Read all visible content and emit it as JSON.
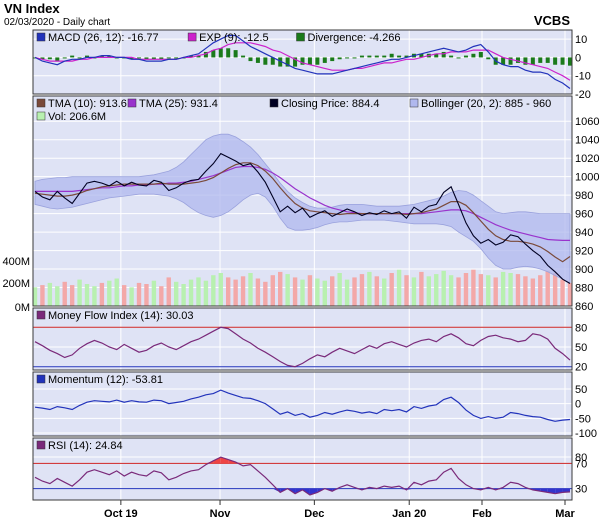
{
  "header": {
    "title": "VN Index",
    "subtitle": "02/03/2020 - Daily chart",
    "brand": "VCBS"
  },
  "colors": {
    "panel_bg": "#dfe3f5",
    "frame": "#3a3a3a",
    "grid": "#ffffff",
    "macd": "#2233bb",
    "exp": "#cc22cc",
    "div_pos": "#1a7a1a",
    "div_neg": "#1a7a1a",
    "tma10": "#7a4a3a",
    "tma25": "#9933cc",
    "close": "#000022",
    "bollinger": "#b0b8ee",
    "vol_up": "#b8f0b0",
    "vol_down": "#f3a8a8",
    "mfi": "#7a2a7a",
    "momentum": "#2233bb",
    "rsi": "#7a2a7a",
    "ob_line": "#cc2222",
    "os_line": "#2233bb",
    "rsi_over": "#ee4444",
    "rsi_under": "#3333cc"
  },
  "x_axis": {
    "labels": [
      "Oct 19",
      "Nov",
      "Dec",
      "Jan 20",
      "Feb",
      "Mar"
    ]
  },
  "chart_data": [
    {
      "type": "bar+line",
      "name": "MACD panel",
      "legend": [
        {
          "key": "macd",
          "label": "MACD (26, 12): -16.77"
        },
        {
          "key": "exp",
          "label": "EXP (9): -12.5"
        },
        {
          "key": "divergence",
          "label": "Divergence: -4.266"
        }
      ],
      "ylim": [
        -20,
        15
      ],
      "ticks": [
        10,
        0,
        -10,
        -20
      ],
      "macd": [
        0,
        -2,
        -3,
        -4,
        -2,
        -1,
        -1,
        0,
        0,
        1,
        1,
        0,
        0,
        -1,
        -1,
        -2,
        -2,
        -2,
        -1,
        -1,
        0,
        1,
        2,
        5,
        8,
        10,
        12,
        12,
        9,
        6,
        4,
        2,
        0,
        -2,
        -4,
        -6,
        -7,
        -8,
        -9,
        -9,
        -9,
        -8,
        -7,
        -6,
        -5,
        -4,
        -3,
        -2,
        -1,
        -1,
        0,
        1,
        2,
        3,
        4,
        5,
        4,
        3,
        4,
        6,
        7,
        3,
        -2,
        -4,
        -5,
        -5,
        -7,
        -8,
        -8,
        -9,
        -12,
        -14,
        -17
      ],
      "exp": [
        0,
        -1,
        -2,
        -2,
        -2,
        -2,
        -1,
        -1,
        0,
        0,
        0,
        0,
        0,
        0,
        -1,
        -1,
        -1,
        -1,
        -1,
        -1,
        0,
        0,
        1,
        2,
        4,
        5,
        7,
        8,
        8,
        8,
        7,
        6,
        4,
        3,
        1,
        -1,
        -3,
        -4,
        -5,
        -6,
        -7,
        -7,
        -7,
        -6,
        -6,
        -5,
        -4,
        -3,
        -3,
        -2,
        -1,
        -1,
        0,
        1,
        2,
        2,
        3,
        3,
        3,
        4,
        4,
        4,
        2,
        0,
        -1,
        -2,
        -3,
        -4,
        -5,
        -6,
        -8,
        -10,
        -12.5
      ]
    },
    {
      "type": "line+bar",
      "name": "Price panel",
      "legend": [
        {
          "key": "tma10",
          "label": "TMA (10): 913.6"
        },
        {
          "key": "tma25",
          "label": "TMA (25): 931.4"
        },
        {
          "key": "close",
          "label": "Closing Price: 884.4"
        },
        {
          "key": "bollinger",
          "label": "Bollinger (20, 2): 885 - 960"
        },
        {
          "key": "vol",
          "label": "Vol: 206.6M"
        }
      ],
      "ylim": [
        860,
        1070
      ],
      "ticks": [
        1060,
        1040,
        1020,
        1000,
        980,
        960,
        940,
        920,
        900,
        880,
        860
      ],
      "vol_ticks": [
        "400M",
        "200M",
        "0M"
      ],
      "close": [
        984,
        978,
        975,
        984,
        977,
        971,
        982,
        993,
        995,
        993,
        990,
        995,
        990,
        994,
        991,
        990,
        996,
        994,
        985,
        988,
        993,
        996,
        997,
        1006,
        1014,
        1025,
        1021,
        1017,
        1012,
        1014,
        1005,
        994,
        978,
        962,
        968,
        961,
        966,
        956,
        960,
        963,
        957,
        961,
        965,
        962,
        958,
        961,
        959,
        963,
        960,
        962,
        955,
        967,
        962,
        968,
        970,
        983,
        989,
        970,
        950,
        936,
        928,
        932,
        926,
        929,
        937,
        935,
        927,
        920,
        914,
        904,
        897,
        889,
        884.4
      ],
      "tma10": [
        982,
        981,
        980,
        979,
        979,
        980,
        982,
        985,
        987,
        989,
        990,
        991,
        992,
        992,
        992,
        992,
        992,
        993,
        992,
        992,
        992,
        993,
        994,
        996,
        999,
        1004,
        1009,
        1013,
        1015,
        1015,
        1012,
        1006,
        998,
        988,
        979,
        971,
        966,
        963,
        962,
        961,
        960,
        959,
        960,
        960,
        960,
        960,
        960,
        960,
        960,
        960,
        959,
        960,
        961,
        963,
        965,
        969,
        973,
        973,
        969,
        961,
        952,
        943,
        936,
        932,
        930,
        930,
        929,
        927,
        924,
        919,
        913,
        908,
        913.6
      ],
      "tma25": [
        984,
        984,
        984,
        984,
        984,
        984,
        985,
        986,
        987,
        988,
        988,
        989,
        990,
        990,
        991,
        991,
        992,
        992,
        993,
        993,
        994,
        995,
        997,
        999,
        1001,
        1004,
        1007,
        1010,
        1011,
        1011,
        1010,
        1008,
        1004,
        999,
        993,
        987,
        982,
        977,
        973,
        969,
        966,
        964,
        962,
        961,
        960,
        960,
        960,
        960,
        960,
        960,
        960,
        960,
        960,
        961,
        962,
        963,
        964,
        964,
        963,
        960,
        956,
        952,
        948,
        945,
        942,
        940,
        938,
        936,
        934,
        932,
        931.4,
        931,
        931
      ],
      "boll_upper": [
        995,
        997,
        998,
        999,
        999,
        1000,
        1000,
        1000,
        1000,
        1000,
        1000,
        1000,
        1000,
        1000,
        1000,
        1001,
        1002,
        1004,
        1006,
        1010,
        1016,
        1024,
        1032,
        1040,
        1044,
        1046,
        1046,
        1043,
        1038,
        1032,
        1024,
        1014,
        1004,
        993,
        984,
        977,
        972,
        968,
        966,
        966,
        967,
        969,
        970,
        970,
        970,
        969,
        968,
        968,
        968,
        968,
        969,
        970,
        972,
        974,
        976,
        979,
        983,
        985,
        984,
        980,
        974,
        968,
        962,
        960,
        961,
        962,
        962,
        961,
        960,
        960,
        960,
        960,
        960
      ],
      "boll_lower": [
        970,
        968,
        966,
        965,
        966,
        967,
        969,
        971,
        973,
        975,
        977,
        978,
        979,
        980,
        981,
        981,
        981,
        980,
        979,
        976,
        972,
        966,
        961,
        958,
        956,
        958,
        962,
        968,
        975,
        980,
        982,
        978,
        968,
        955,
        945,
        942,
        942,
        943,
        945,
        948,
        950,
        951,
        951,
        952,
        953,
        953,
        953,
        953,
        952,
        951,
        950,
        949,
        949,
        949,
        949,
        948,
        946,
        940,
        935,
        930,
        922,
        912,
        904,
        900,
        900,
        902,
        903,
        902,
        900,
        897,
        893,
        889,
        885
      ],
      "volume": [
        170,
        190,
        210,
        180,
        220,
        190,
        240,
        200,
        180,
        210,
        230,
        250,
        190,
        170,
        210,
        200,
        230,
        180,
        260,
        220,
        200,
        240,
        260,
        230,
        280,
        300,
        260,
        240,
        270,
        300,
        250,
        220,
        280,
        310,
        290,
        260,
        240,
        280,
        250,
        230,
        270,
        300,
        240,
        260,
        290,
        310,
        270,
        250,
        300,
        330,
        280,
        260,
        310,
        270,
        290,
        320,
        280,
        260,
        300,
        330,
        290,
        280,
        260,
        310,
        300,
        290,
        270,
        250,
        280,
        320,
        300,
        240,
        210
      ],
      "volume_up": [
        1,
        0,
        1,
        1,
        0,
        0,
        1,
        1,
        1,
        0,
        1,
        1,
        0,
        1,
        0,
        0,
        1,
        0,
        0,
        1,
        1,
        1,
        1,
        1,
        1,
        1,
        0,
        0,
        0,
        1,
        0,
        0,
        0,
        0,
        1,
        0,
        1,
        0,
        1,
        1,
        0,
        1,
        1,
        0,
        0,
        1,
        0,
        1,
        0,
        1,
        0,
        1,
        0,
        1,
        1,
        1,
        1,
        0,
        0,
        0,
        0,
        1,
        0,
        1,
        1,
        0,
        0,
        0,
        0,
        0,
        0,
        0,
        0
      ]
    },
    {
      "type": "line",
      "name": "Money Flow Index",
      "legend": [
        {
          "key": "mfi",
          "label": "Money Flow Index (14): 30.03"
        }
      ],
      "ylim": [
        15,
        88
      ],
      "ticks": [
        80,
        50,
        20
      ],
      "overbought": 80,
      "oversold": 20,
      "values": [
        58,
        52,
        45,
        40,
        34,
        38,
        48,
        55,
        60,
        56,
        50,
        46,
        54,
        48,
        42,
        45,
        52,
        56,
        50,
        46,
        52,
        58,
        62,
        68,
        74,
        80,
        78,
        70,
        62,
        56,
        48,
        42,
        35,
        28,
        22,
        20,
        25,
        32,
        38,
        35,
        42,
        48,
        44,
        40,
        46,
        52,
        48,
        55,
        58,
        54,
        50,
        56,
        60,
        62,
        58,
        66,
        70,
        64,
        55,
        52,
        60,
        66,
        68,
        64,
        62,
        58,
        60,
        70,
        68,
        62,
        48,
        40,
        30.03
      ]
    },
    {
      "type": "line",
      "name": "Momentum",
      "legend": [
        {
          "key": "momentum",
          "label": "Momentum (12): -53.81"
        }
      ],
      "ylim": [
        -110,
        60
      ],
      "ticks": [
        50,
        0,
        -50,
        -100
      ],
      "values": [
        -12,
        -15,
        -20,
        -10,
        -14,
        -20,
        -6,
        5,
        10,
        8,
        6,
        12,
        5,
        10,
        6,
        5,
        12,
        10,
        0,
        4,
        8,
        16,
        22,
        30,
        34,
        46,
        36,
        28,
        20,
        18,
        10,
        0,
        -18,
        -36,
        -28,
        -40,
        -34,
        -46,
        -40,
        -30,
        -36,
        -28,
        -22,
        -26,
        -32,
        -28,
        -34,
        -20,
        -24,
        -20,
        -28,
        -10,
        -16,
        -8,
        -4,
        14,
        22,
        4,
        -22,
        -40,
        -50,
        -44,
        -50,
        -46,
        -30,
        -34,
        -40,
        -44,
        -46,
        -54,
        -60,
        -56,
        -53.81
      ]
    },
    {
      "type": "line",
      "name": "RSI",
      "legend": [
        {
          "key": "rsi",
          "label": "RSI (14): 24.84"
        }
      ],
      "ylim": [
        12,
        88
      ],
      "ticks": [
        80,
        70,
        30
      ],
      "overbought": 70,
      "oversold": 30,
      "values": [
        48,
        42,
        38,
        46,
        40,
        34,
        44,
        56,
        60,
        56,
        52,
        58,
        50,
        56,
        52,
        50,
        58,
        55,
        44,
        48,
        54,
        58,
        60,
        68,
        74,
        80,
        76,
        72,
        66,
        68,
        58,
        48,
        36,
        24,
        30,
        22,
        28,
        20,
        24,
        30,
        26,
        32,
        36,
        32,
        28,
        32,
        30,
        34,
        32,
        34,
        28,
        40,
        36,
        42,
        44,
        56,
        62,
        46,
        36,
        30,
        28,
        32,
        28,
        32,
        40,
        38,
        32,
        28,
        26,
        24,
        22,
        24,
        24.84
      ]
    }
  ]
}
